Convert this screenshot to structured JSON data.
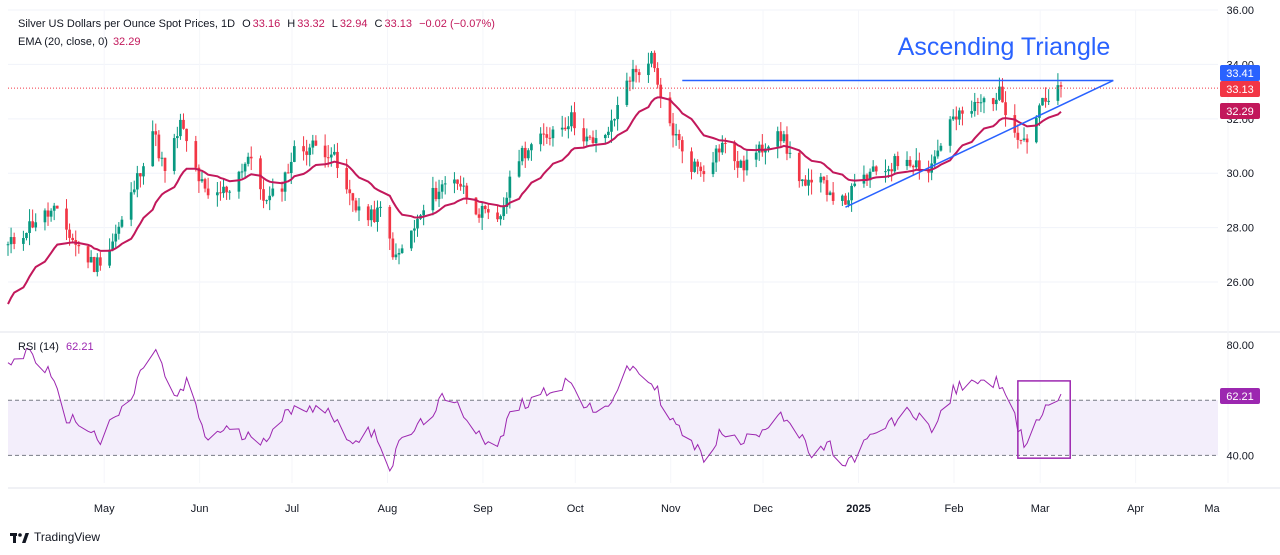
{
  "legend": {
    "symbol": "Silver US Dollars per Ounce Spot Prices, 1D",
    "o_label": "O",
    "o": "33.16",
    "h_label": "H",
    "h": "33.32",
    "l_label": "L",
    "l": "32.94",
    "c_label": "C",
    "c": "33.13",
    "change": "−0.02 (−0.07%)",
    "ema_name": "EMA (20, close, 0)",
    "ema_value": "32.29",
    "rsi_name": "RSI (14)",
    "rsi_value": "62.21"
  },
  "branding": {
    "name": "TradingView",
    "logo_icon": "tradingview-logo-icon"
  },
  "colors": {
    "up": "#089981",
    "down": "#f23645",
    "ema": "#c2185b",
    "trendline": "#2962ff",
    "rsi": "#9c27b0",
    "rsi_band": "#f3eefb",
    "annotation_text": "#2962ff"
  },
  "chart_data": [
    {
      "type": "candlestick",
      "title": "Silver US Dollars per Ounce Spot Prices, 1D",
      "x_tick_labels": [
        "May",
        "Jun",
        "Jul",
        "Aug",
        "Sep",
        "Oct",
        "Nov",
        "Dec",
        "2025",
        "Feb",
        "Mar",
        "Apr",
        "Ma"
      ],
      "x_range": [
        "2024-04-03",
        "2025-05-01"
      ],
      "y_ticks": [
        "26.00",
        "28.00",
        "30.00",
        "32.00",
        "34.00",
        "36.00"
      ],
      "ylim": [
        24.2,
        36.0
      ],
      "price_labels": [
        {
          "value": "33.41",
          "color": "#2962ff"
        },
        {
          "value": "33.13",
          "color": "#f23645"
        },
        {
          "value": "32.29",
          "color": "#c2185b"
        }
      ],
      "last_price_line": 33.13,
      "annotation": "Ascending Triangle",
      "resistance_line": {
        "from": [
          "2024-11-08",
          33.41
        ],
        "to": [
          "2025-03-28",
          33.41
        ]
      },
      "support_line": {
        "from": [
          "2024-12-31",
          28.75
        ],
        "to": [
          "2025-03-28",
          33.41
        ]
      },
      "close_path": [
        [
          "2024-04-03",
          27.3
        ],
        [
          "2024-04-12",
          28.3
        ],
        [
          "2024-04-18",
          28.6
        ],
        [
          "2024-04-25",
          27.4
        ],
        [
          "2024-05-01",
          26.6
        ],
        [
          "2024-05-06",
          27.3
        ],
        [
          "2024-05-10",
          28.2
        ],
        [
          "2024-05-15",
          29.8
        ],
        [
          "2024-05-20",
          31.6
        ],
        [
          "2024-05-24",
          30.0
        ],
        [
          "2024-05-29",
          31.8
        ],
        [
          "2024-06-03",
          30.1
        ],
        [
          "2024-06-07",
          29.0
        ],
        [
          "2024-06-14",
          29.5
        ],
        [
          "2024-06-20",
          30.6
        ],
        [
          "2024-06-26",
          28.9
        ],
        [
          "2024-07-01",
          29.6
        ],
        [
          "2024-07-05",
          30.8
        ],
        [
          "2024-07-11",
          31.0
        ],
        [
          "2024-07-17",
          30.8
        ],
        [
          "2024-07-22",
          29.3
        ],
        [
          "2024-07-29",
          28.3
        ],
        [
          "2024-08-02",
          28.6
        ],
        [
          "2024-08-07",
          26.8
        ],
        [
          "2024-08-12",
          27.8
        ],
        [
          "2024-08-19",
          29.2
        ],
        [
          "2024-08-26",
          29.9
        ],
        [
          "2024-09-03",
          28.6
        ],
        [
          "2024-09-09",
          28.1
        ],
        [
          "2024-09-16",
          30.7
        ],
        [
          "2024-09-23",
          31.2
        ],
        [
          "2024-09-27",
          31.6
        ],
        [
          "2024-10-03",
          32.0
        ],
        [
          "2024-10-10",
          31.0
        ],
        [
          "2024-10-16",
          31.7
        ],
        [
          "2024-10-21",
          33.5
        ],
        [
          "2024-10-24",
          33.7
        ],
        [
          "2024-10-29",
          34.2
        ],
        [
          "2024-11-01",
          32.6
        ],
        [
          "2024-11-06",
          31.3
        ],
        [
          "2024-11-11",
          30.3
        ],
        [
          "2024-11-15",
          30.2
        ],
        [
          "2024-11-21",
          31.1
        ],
        [
          "2024-11-27",
          30.2
        ],
        [
          "2024-12-03",
          30.8
        ],
        [
          "2024-12-09",
          31.7
        ],
        [
          "2024-12-13",
          30.6
        ],
        [
          "2024-12-18",
          29.5
        ],
        [
          "2024-12-24",
          29.6
        ],
        [
          "2024-12-30",
          28.9
        ],
        [
          "2025-01-06",
          29.8
        ],
        [
          "2025-01-13",
          30.2
        ],
        [
          "2025-01-20",
          30.6
        ],
        [
          "2025-01-27",
          30.1
        ],
        [
          "2025-02-03",
          31.9
        ],
        [
          "2025-02-07",
          32.1
        ],
        [
          "2025-02-13",
          32.6
        ],
        [
          "2025-02-19",
          32.9
        ],
        [
          "2025-02-25",
          31.5
        ],
        [
          "2025-02-28",
          31.2
        ],
        [
          "2025-03-04",
          32.5
        ],
        [
          "2025-03-07",
          32.6
        ],
        [
          "2025-03-11",
          33.1
        ]
      ]
    },
    {
      "type": "line",
      "series": [
        {
          "name": "EMA (20, close, 0)",
          "values_from": "close_path"
        }
      ],
      "last_value": 32.29
    },
    {
      "type": "line",
      "title": "RSI (14)",
      "y_ticks": [
        "40.00",
        "60.00",
        "80.00"
      ],
      "ylim": [
        30,
        84
      ],
      "band": [
        40,
        60
      ],
      "last_value_label": "62.21",
      "points": [
        [
          "2024-04-03",
          73
        ],
        [
          "2024-04-10",
          78
        ],
        [
          "2024-04-16",
          70
        ],
        [
          "2024-04-22",
          54
        ],
        [
          "2024-04-29",
          50
        ],
        [
          "2024-05-03",
          45
        ],
        [
          "2024-05-08",
          54
        ],
        [
          "2024-05-13",
          60
        ],
        [
          "2024-05-18",
          76
        ],
        [
          "2024-05-21",
          78
        ],
        [
          "2024-05-27",
          60
        ],
        [
          "2024-05-31",
          66
        ],
        [
          "2024-06-07",
          45
        ],
        [
          "2024-06-12",
          50
        ],
        [
          "2024-06-18",
          47
        ],
        [
          "2024-06-25",
          46
        ],
        [
          "2024-07-01",
          54
        ],
        [
          "2024-07-09",
          58
        ],
        [
          "2024-07-15",
          57
        ],
        [
          "2024-07-19",
          52
        ],
        [
          "2024-07-25",
          44
        ],
        [
          "2024-07-31",
          50
        ],
        [
          "2024-08-05",
          35
        ],
        [
          "2024-08-09",
          46
        ],
        [
          "2024-08-15",
          51
        ],
        [
          "2024-08-22",
          60
        ],
        [
          "2024-08-28",
          57
        ],
        [
          "2024-09-04",
          47
        ],
        [
          "2024-09-09",
          42
        ],
        [
          "2024-09-13",
          55
        ],
        [
          "2024-09-19",
          60
        ],
        [
          "2024-09-26",
          64
        ],
        [
          "2024-10-02",
          67
        ],
        [
          "2024-10-07",
          59
        ],
        [
          "2024-10-11",
          54
        ],
        [
          "2024-10-17",
          62
        ],
        [
          "2024-10-22",
          72
        ],
        [
          "2024-10-25",
          70
        ],
        [
          "2024-10-30",
          65
        ],
        [
          "2024-11-05",
          52
        ],
        [
          "2024-11-12",
          43
        ],
        [
          "2024-11-15",
          39
        ],
        [
          "2024-11-21",
          49
        ],
        [
          "2024-11-27",
          44
        ],
        [
          "2024-12-04",
          50
        ],
        [
          "2024-12-10",
          56
        ],
        [
          "2024-12-16",
          47
        ],
        [
          "2024-12-20",
          40
        ],
        [
          "2024-12-26",
          43
        ],
        [
          "2024-12-31",
          36
        ],
        [
          "2025-01-07",
          45
        ],
        [
          "2025-01-14",
          51
        ],
        [
          "2025-01-21",
          56
        ],
        [
          "2025-01-29",
          50
        ],
        [
          "2025-02-04",
          63
        ],
        [
          "2025-02-10",
          68
        ],
        [
          "2025-02-14",
          65
        ],
        [
          "2025-02-20",
          67
        ],
        [
          "2025-02-24",
          53
        ],
        [
          "2025-02-27",
          44
        ],
        [
          "2025-03-03",
          52
        ],
        [
          "2025-03-06",
          57
        ],
        [
          "2025-03-11",
          62.21
        ]
      ],
      "highlight_box": {
        "from": [
          "2025-02-25",
          39
        ],
        "to": [
          "2025-03-14",
          67
        ]
      }
    }
  ]
}
